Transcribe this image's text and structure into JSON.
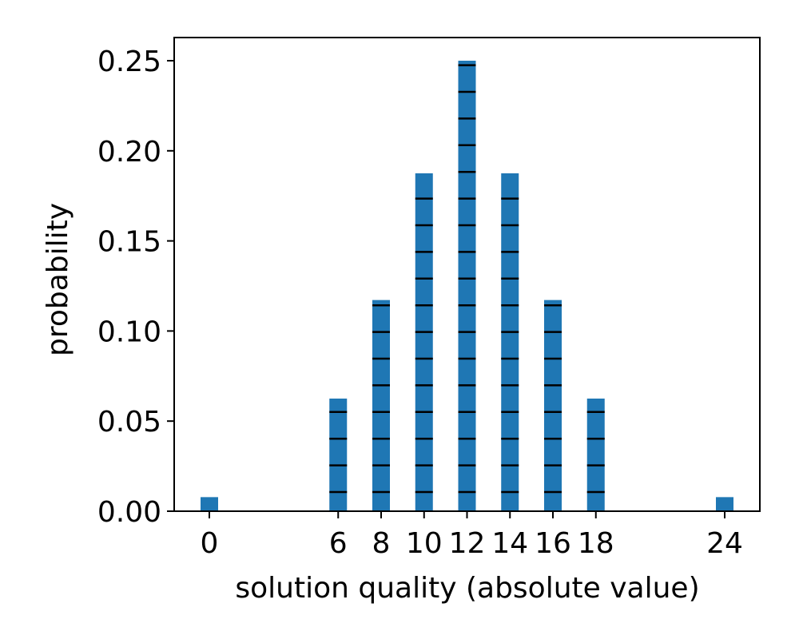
{
  "chart_data": {
    "type": "bar",
    "title": "",
    "xlabel": "solution quality (absolute value)",
    "ylabel": "probability",
    "categories": [
      0,
      6,
      8,
      10,
      12,
      14,
      16,
      18,
      24
    ],
    "values": [
      0.0078125,
      0.0625,
      0.1171875,
      0.1875,
      0.25,
      0.1875,
      0.1171875,
      0.0625,
      0.0078125
    ],
    "segment_size": 0.0148,
    "bar_color": "#1f77b4",
    "segment_line_color": "#000000",
    "xlim": [
      -1.5,
      25.5
    ],
    "ylim": [
      0,
      0.2625
    ],
    "xticks": [
      0,
      6,
      8,
      10,
      12,
      14,
      16,
      18,
      24
    ],
    "xtick_labels": [
      "0",
      "6",
      "8",
      "10",
      "12",
      "14",
      "16",
      "18",
      "24"
    ],
    "yticks": [
      0.0,
      0.05,
      0.1,
      0.15,
      0.2,
      0.25
    ],
    "ytick_labels": [
      "0.00",
      "0.05",
      "0.10",
      "0.15",
      "0.20",
      "0.25"
    ],
    "grid": false,
    "legend": null
  },
  "axes": {
    "xlabel": "solution quality (absolute value)",
    "ylabel": "probability"
  }
}
